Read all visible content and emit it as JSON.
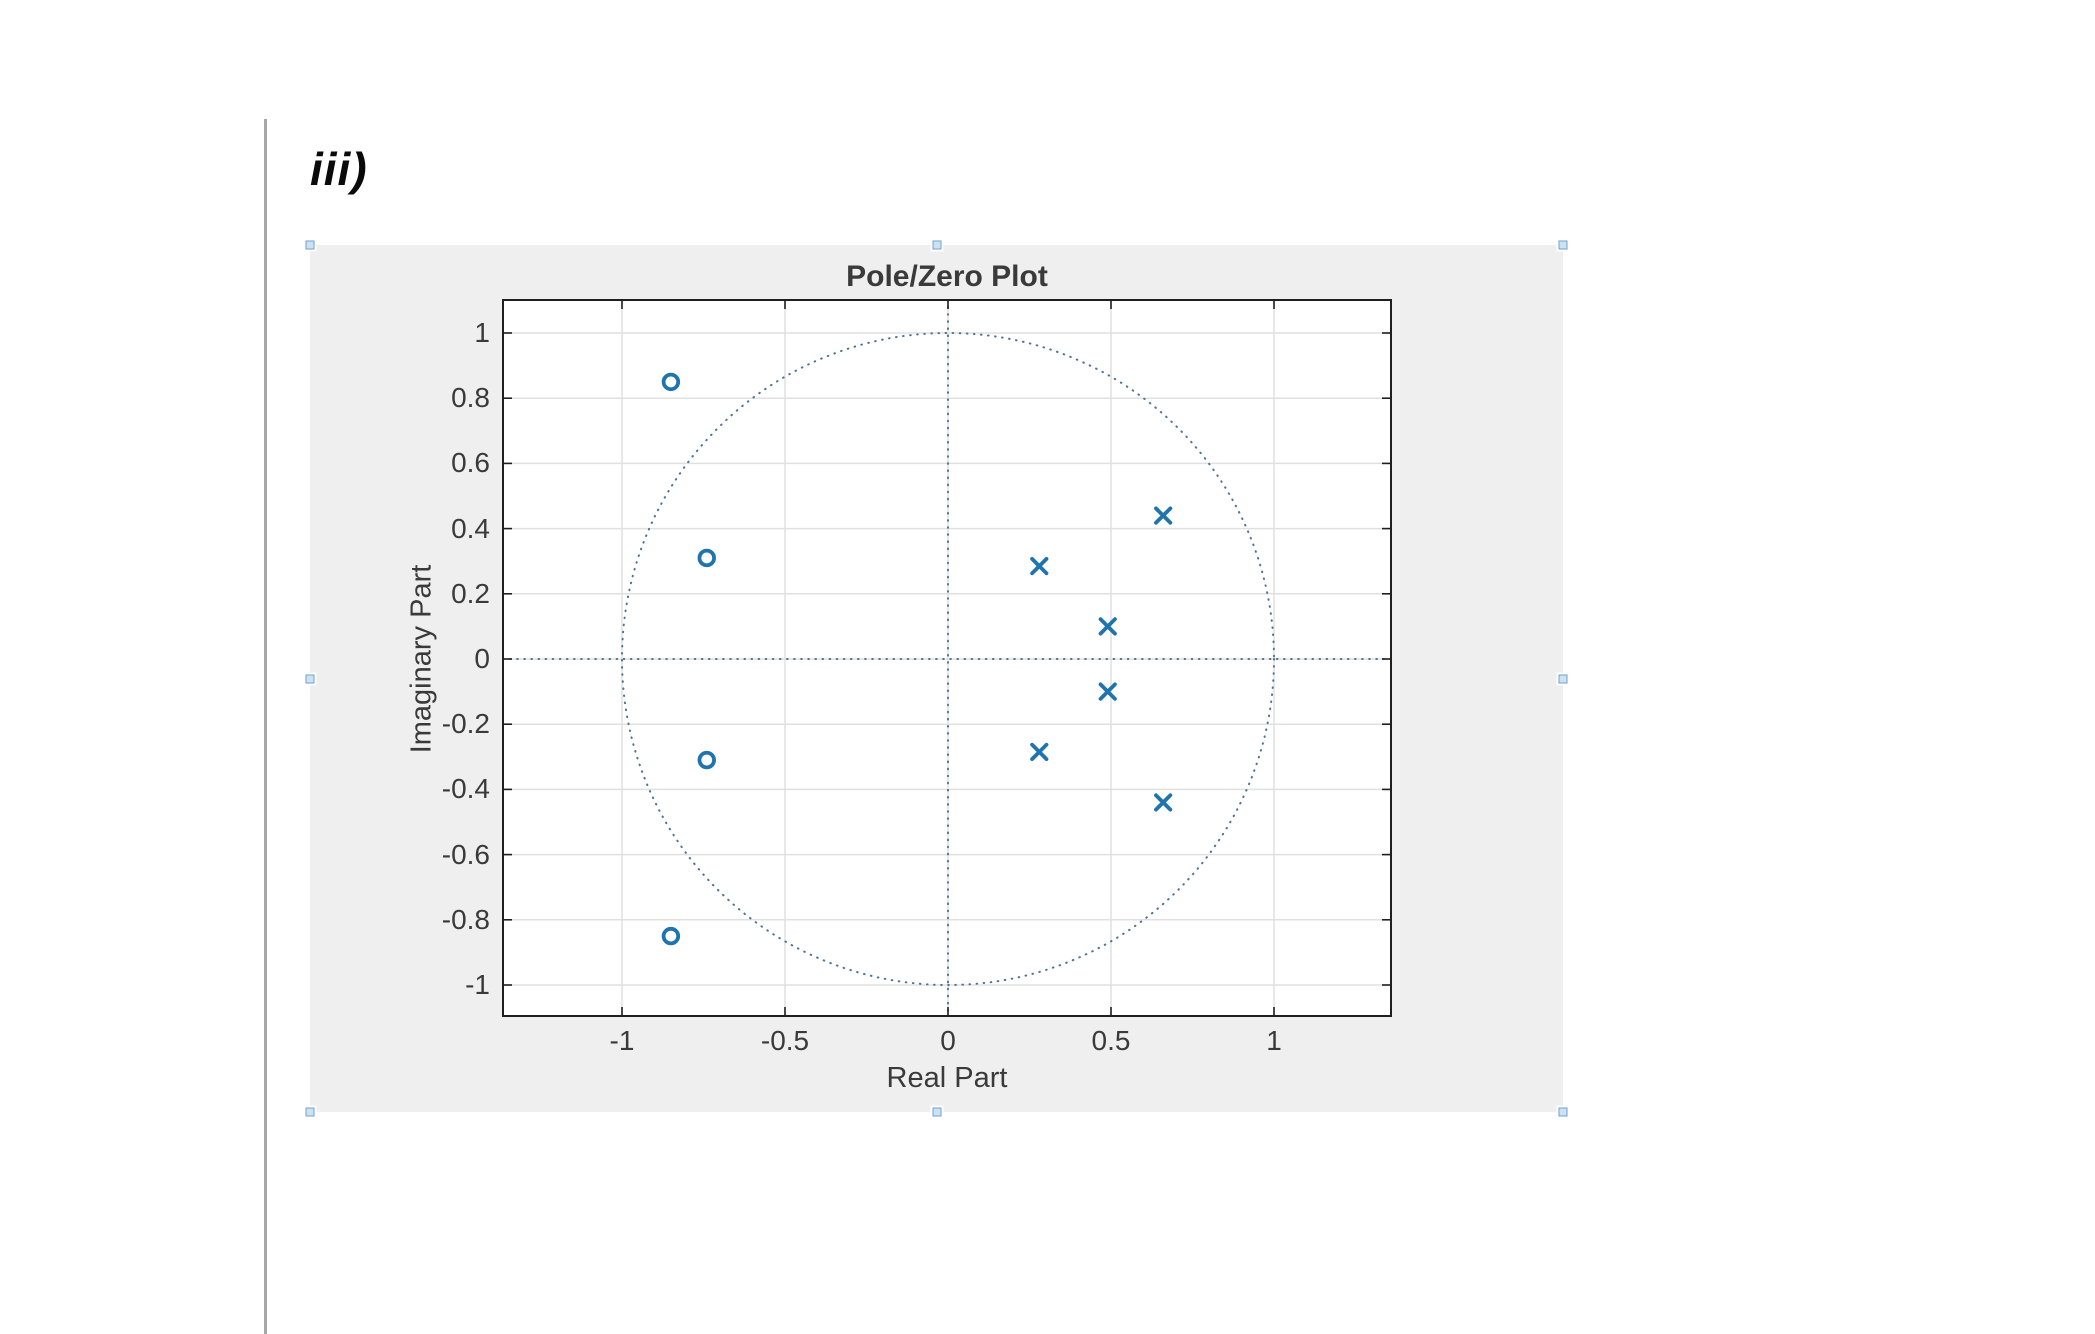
{
  "document": {
    "section_label": "iii)"
  },
  "figure": {
    "selected": true,
    "selection_handles": [
      "nw",
      "n",
      "ne",
      "w",
      "e",
      "sw",
      "s",
      "se"
    ]
  },
  "chart_data": {
    "type": "scatter",
    "subtype": "pole-zero-plot",
    "title": "Pole/Zero Plot",
    "xlabel": "Real Part",
    "ylabel": "Imaginary Part",
    "xlim": [
      -1.365,
      1.36
    ],
    "ylim": [
      -1.095,
      1.1
    ],
    "x_ticks": [
      -1,
      -0.5,
      0,
      0.5,
      1
    ],
    "x_tick_labels": [
      "-1",
      "-0.5",
      "0",
      "0.5",
      "1"
    ],
    "y_ticks": [
      1,
      0.8,
      0.6,
      0.4,
      0.2,
      0,
      -0.2,
      -0.4,
      -0.6,
      -0.8,
      -1
    ],
    "y_tick_labels": [
      "1",
      "0.8",
      "0.6",
      "0.4",
      "0.2",
      "0",
      "-0.2",
      "-0.4",
      "-0.6",
      "-0.8",
      "-1"
    ],
    "grid": true,
    "unit_circle": true,
    "axis_cross_lines": true,
    "legend": "none",
    "series": [
      {
        "name": "zeros",
        "marker": "o",
        "points": [
          [
            -0.85,
            0.85
          ],
          [
            -0.74,
            0.31
          ],
          [
            -0.74,
            -0.31
          ],
          [
            -0.85,
            -0.85
          ]
        ]
      },
      {
        "name": "poles",
        "marker": "x",
        "points": [
          [
            0.28,
            0.285
          ],
          [
            0.49,
            0.1
          ],
          [
            0.66,
            0.44
          ],
          [
            0.28,
            -0.285
          ],
          [
            0.49,
            -0.1
          ],
          [
            0.66,
            -0.44
          ]
        ]
      }
    ],
    "colors": {
      "marker": "#2074ae",
      "dotted_guides": "#4d7494",
      "grid": "#e0e0e0",
      "axis_box": "#1f1f1f",
      "figure_bg": "#efefef",
      "plot_bg": "#ffffff",
      "text": "#3a3a3a",
      "handle_fill": "#cde1f2",
      "handle_border": "#6ea3cd",
      "margin_line": "#a6a6a6"
    }
  }
}
